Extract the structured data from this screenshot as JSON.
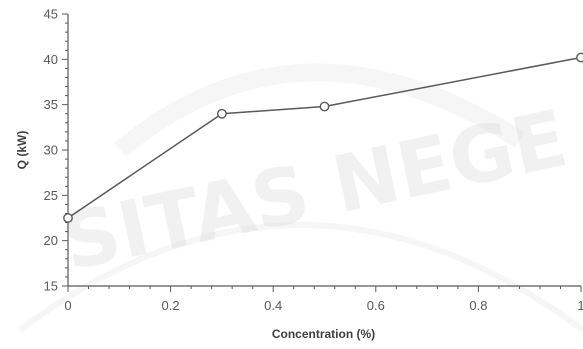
{
  "chart_data": {
    "type": "line",
    "title": "",
    "xlabel": "Concentration (%)",
    "ylabel": "Q (kW)",
    "xlim": [
      0,
      1
    ],
    "ylim": [
      15,
      45
    ],
    "xticks": [
      "0",
      "0.2",
      "0.4",
      "0.6",
      "0.8",
      "1"
    ],
    "yticks": [
      "15",
      "20",
      "25",
      "30",
      "35",
      "40",
      "45"
    ],
    "grid": false,
    "legend": "none",
    "series": [
      {
        "x": [
          0,
          0.3,
          0.5,
          1.0
        ],
        "y": [
          22.5,
          34.0,
          34.8,
          40.2
        ],
        "color": "#595959",
        "marker": "open-circle"
      }
    ]
  },
  "watermark": {
    "text": "SITAS NEGE"
  },
  "colors": {
    "axis": "#595959",
    "line": "#595959",
    "watermark": "#d9d9d9"
  }
}
